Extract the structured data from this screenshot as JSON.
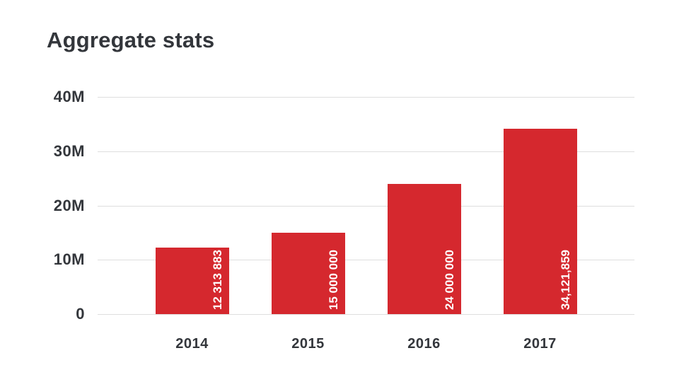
{
  "colors": {
    "background": "#ffffff",
    "bar": "#d5282e",
    "text": "#33363b",
    "gridline": "#dedede",
    "value_text": "#ffffff"
  },
  "chart_data": {
    "type": "bar",
    "title": "Aggregate stats",
    "categories": [
      "2014",
      "2015",
      "2016",
      "2017"
    ],
    "values": [
      12313883,
      15000000,
      24000000,
      34121859
    ],
    "value_labels": [
      "12 313 883",
      "15 000 000",
      "24 000 000",
      "34,121,859"
    ],
    "xlabel": "",
    "ylabel": "",
    "ylim": [
      0,
      40000000
    ],
    "y_ticks": [
      {
        "value": 40000000,
        "label": "40M"
      },
      {
        "value": 30000000,
        "label": "30M"
      },
      {
        "value": 20000000,
        "label": "20M"
      },
      {
        "value": 10000000,
        "label": "10M"
      },
      {
        "value": 0,
        "label": "0"
      }
    ],
    "grid": true,
    "legend": false,
    "bar_color": "#d5282e",
    "value_label_rotation": -90
  }
}
